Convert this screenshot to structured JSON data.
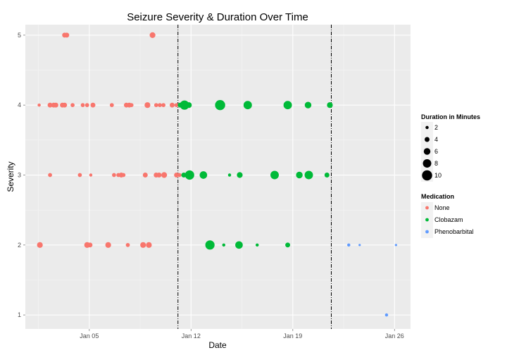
{
  "chart_data": {
    "type": "scatter",
    "title": "Seizure Severity & Duration Over Time",
    "xlabel": "Date",
    "ylabel": "Severity",
    "x_ticks": [
      "Jan 05",
      "Jan 12",
      "Jan 19",
      "Jan 26"
    ],
    "y_ticks": [
      "1",
      "2",
      "3",
      "4",
      "5"
    ],
    "xlim": [
      0.6,
      27.1
    ],
    "ylim": [
      0.8,
      5.15
    ],
    "x_tick_values": [
      5,
      12,
      19,
      26
    ],
    "vlines": [
      11.1,
      21.65
    ],
    "grid": true,
    "legend_position": "right",
    "size_legend": {
      "title": "Duration in Minutes",
      "entries": [
        {
          "label": "2",
          "value": 2
        },
        {
          "label": "4",
          "value": 4
        },
        {
          "label": "6",
          "value": 6
        },
        {
          "label": "8",
          "value": 8
        },
        {
          "label": "10",
          "value": 10
        }
      ]
    },
    "color_legend": {
      "title": "Medication",
      "entries": [
        {
          "label": "None",
          "color": "#F8766D"
        },
        {
          "label": "Clobazam",
          "color": "#00BA38"
        },
        {
          "label": "Phenobarbital",
          "color": "#619CFF"
        }
      ]
    },
    "series": [
      {
        "name": "None",
        "color": "#F8766D",
        "points": [
          {
            "x": 3.3,
            "y": 5,
            "d": 4
          },
          {
            "x": 3.45,
            "y": 5,
            "d": 4
          },
          {
            "x": 9.35,
            "y": 5,
            "d": 5
          },
          {
            "x": 1.55,
            "y": 4,
            "d": 2
          },
          {
            "x": 2.3,
            "y": 4,
            "d": 4
          },
          {
            "x": 2.55,
            "y": 4,
            "d": 4
          },
          {
            "x": 2.7,
            "y": 4,
            "d": 4
          },
          {
            "x": 3.15,
            "y": 4,
            "d": 4
          },
          {
            "x": 3.3,
            "y": 4,
            "d": 4
          },
          {
            "x": 3.85,
            "y": 4,
            "d": 3
          },
          {
            "x": 4.55,
            "y": 4,
            "d": 3
          },
          {
            "x": 4.85,
            "y": 4,
            "d": 3
          },
          {
            "x": 5.25,
            "y": 4,
            "d": 4
          },
          {
            "x": 6.55,
            "y": 4,
            "d": 3
          },
          {
            "x": 7.55,
            "y": 4,
            "d": 4
          },
          {
            "x": 7.75,
            "y": 4,
            "d": 4
          },
          {
            "x": 7.9,
            "y": 4,
            "d": 3
          },
          {
            "x": 9.0,
            "y": 4,
            "d": 5
          },
          {
            "x": 9.6,
            "y": 4,
            "d": 3
          },
          {
            "x": 9.85,
            "y": 4,
            "d": 3
          },
          {
            "x": 10.1,
            "y": 4,
            "d": 3
          },
          {
            "x": 10.7,
            "y": 4,
            "d": 4
          },
          {
            "x": 11.0,
            "y": 4,
            "d": 3
          },
          {
            "x": 2.3,
            "y": 3,
            "d": 3
          },
          {
            "x": 4.35,
            "y": 3,
            "d": 3
          },
          {
            "x": 5.1,
            "y": 3,
            "d": 2
          },
          {
            "x": 6.7,
            "y": 3,
            "d": 3
          },
          {
            "x": 7.0,
            "y": 3,
            "d": 3
          },
          {
            "x": 7.2,
            "y": 3,
            "d": 4
          },
          {
            "x": 7.35,
            "y": 3,
            "d": 3
          },
          {
            "x": 8.85,
            "y": 3,
            "d": 4
          },
          {
            "x": 9.6,
            "y": 3,
            "d": 4
          },
          {
            "x": 9.8,
            "y": 3,
            "d": 4
          },
          {
            "x": 10.15,
            "y": 3,
            "d": 5
          },
          {
            "x": 11.0,
            "y": 3,
            "d": 4
          },
          {
            "x": 11.2,
            "y": 3,
            "d": 3
          },
          {
            "x": 1.6,
            "y": 2,
            "d": 5
          },
          {
            "x": 4.85,
            "y": 2,
            "d": 5
          },
          {
            "x": 5.05,
            "y": 2,
            "d": 4
          },
          {
            "x": 6.3,
            "y": 2,
            "d": 5
          },
          {
            "x": 7.65,
            "y": 2,
            "d": 3
          },
          {
            "x": 8.7,
            "y": 2,
            "d": 5
          },
          {
            "x": 9.1,
            "y": 2,
            "d": 5
          }
        ]
      },
      {
        "name": "Clobazam",
        "color": "#00BA38",
        "points": [
          {
            "x": 11.25,
            "y": 4,
            "d": 4
          },
          {
            "x": 11.55,
            "y": 4,
            "d": 9
          },
          {
            "x": 11.85,
            "y": 4,
            "d": 5
          },
          {
            "x": 14.0,
            "y": 4,
            "d": 10
          },
          {
            "x": 15.9,
            "y": 4,
            "d": 8
          },
          {
            "x": 18.65,
            "y": 4,
            "d": 8
          },
          {
            "x": 20.05,
            "y": 4,
            "d": 6
          },
          {
            "x": 21.55,
            "y": 4,
            "d": 5
          },
          {
            "x": 11.5,
            "y": 3,
            "d": 4
          },
          {
            "x": 11.9,
            "y": 3,
            "d": 9
          },
          {
            "x": 12.85,
            "y": 3,
            "d": 7
          },
          {
            "x": 14.65,
            "y": 3,
            "d": 2
          },
          {
            "x": 15.35,
            "y": 3,
            "d": 5
          },
          {
            "x": 17.75,
            "y": 3,
            "d": 8
          },
          {
            "x": 19.45,
            "y": 3,
            "d": 6
          },
          {
            "x": 20.1,
            "y": 3,
            "d": 8
          },
          {
            "x": 21.35,
            "y": 3,
            "d": 4
          },
          {
            "x": 13.3,
            "y": 2,
            "d": 9
          },
          {
            "x": 14.25,
            "y": 2,
            "d": 2
          },
          {
            "x": 15.3,
            "y": 2,
            "d": 7
          },
          {
            "x": 16.55,
            "y": 2,
            "d": 2
          },
          {
            "x": 18.65,
            "y": 2,
            "d": 4
          }
        ]
      },
      {
        "name": "Phenobarbital",
        "color": "#619CFF",
        "points": [
          {
            "x": 22.85,
            "y": 2,
            "d": 2
          },
          {
            "x": 23.6,
            "y": 2,
            "d": 1
          },
          {
            "x": 26.1,
            "y": 2,
            "d": 1
          },
          {
            "x": 25.45,
            "y": 1,
            "d": 2
          }
        ]
      }
    ]
  }
}
